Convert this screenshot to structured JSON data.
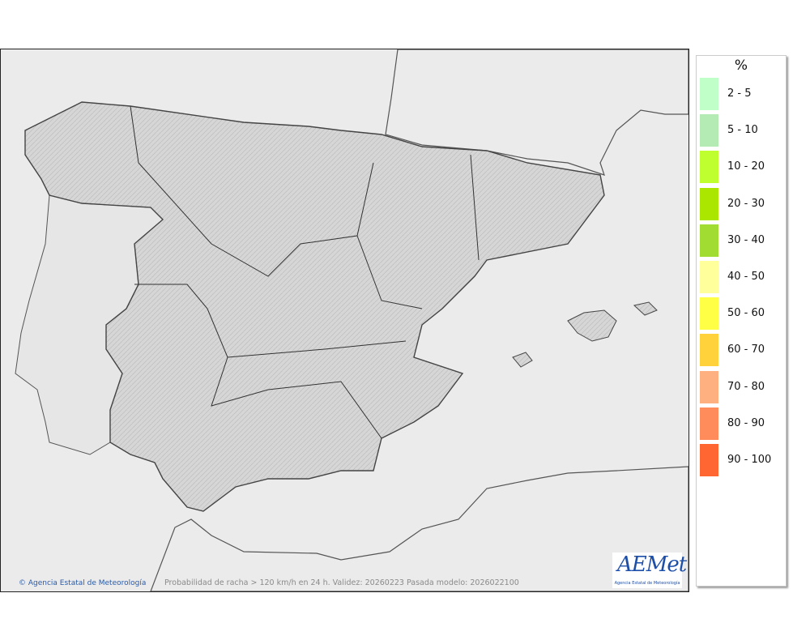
{
  "map": {
    "credit": "© Agencia Estatal de Meteorología",
    "caption": "Probabilidad de racha > 120 km/h en 24 h. Validez: 20260223 Pasada modelo: 2026022100",
    "logo_text": "AEMet",
    "logo_subtext": "Agencia Estatal de Meteorología",
    "colors": {
      "sea": "#ebebeb",
      "spain_land": "#d6d6d6",
      "other_land": "#ebebeb",
      "border": "#333333"
    }
  },
  "legend": {
    "unit": "%",
    "items": [
      {
        "label": "2 - 5",
        "color": "#c0ffc8"
      },
      {
        "label": "5 - 10",
        "color": "#b4ebb4"
      },
      {
        "label": "10 - 20",
        "color": "#bfff30"
      },
      {
        "label": "20 - 30",
        "color": "#aae600"
      },
      {
        "label": "30 - 40",
        "color": "#a0dc32"
      },
      {
        "label": "40 - 50",
        "color": "#ffff9c"
      },
      {
        "label": "50 - 60",
        "color": "#ffff46"
      },
      {
        "label": "60 - 70",
        "color": "#ffd23c"
      },
      {
        "label": "70 - 80",
        "color": "#ffb080"
      },
      {
        "label": "80 - 90",
        "color": "#ff8c5a"
      },
      {
        "label": "90 - 100",
        "color": "#ff6632"
      }
    ]
  }
}
